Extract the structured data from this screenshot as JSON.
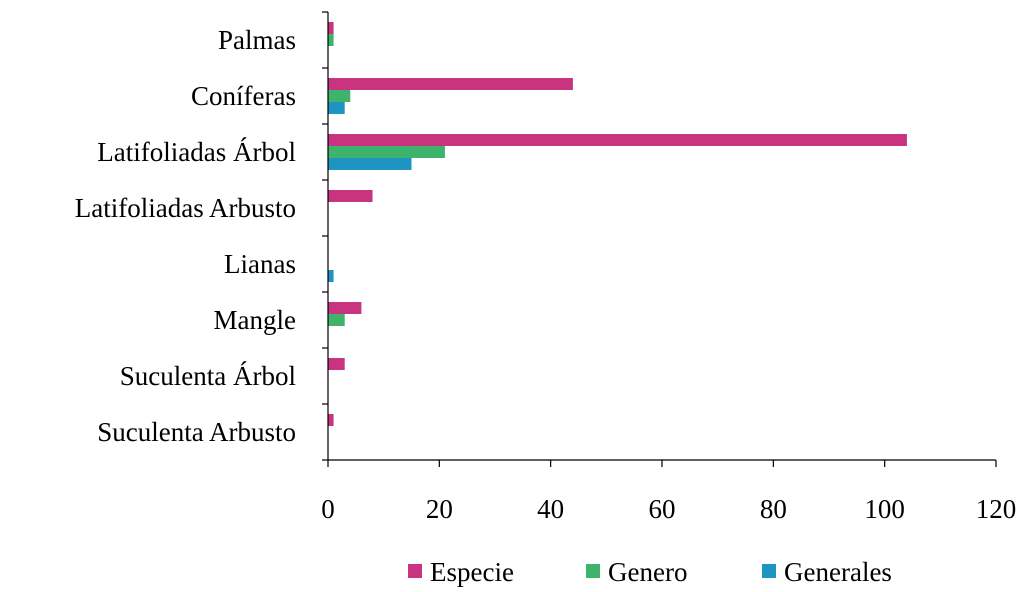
{
  "chart_data": {
    "type": "bar",
    "orientation": "horizontal",
    "categories": [
      "Palmas",
      "Coníferas",
      "Latifoliadas Árbol",
      "Latifoliadas Arbusto",
      "Lianas",
      "Mangle",
      "Suculenta Árbol",
      "Suculenta Arbusto"
    ],
    "series": [
      {
        "name": "Especie",
        "color": "#C8347F",
        "values": [
          1,
          44,
          104,
          8,
          0,
          6,
          3,
          1
        ]
      },
      {
        "name": "Genero",
        "color": "#3DB36B",
        "values": [
          1,
          4,
          21,
          0,
          0,
          3,
          0,
          0
        ]
      },
      {
        "name": "Generales",
        "color": "#1E94C2",
        "values": [
          0,
          3,
          15,
          0,
          1,
          0,
          0,
          0
        ]
      }
    ],
    "xlim": [
      0,
      120
    ],
    "xticks": [
      "0",
      "20",
      "40",
      "60",
      "80",
      "100",
      "120"
    ],
    "title": "",
    "xlabel": "",
    "ylabel": "",
    "grid": false,
    "legend_position": "bottom"
  }
}
